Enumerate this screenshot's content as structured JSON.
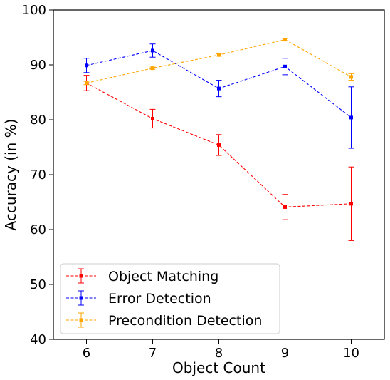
{
  "chart_data": {
    "type": "line",
    "xlabel": "Object Count",
    "ylabel": "Accuracy (in %)",
    "x": [
      6,
      7,
      8,
      9,
      10
    ],
    "xticks": [
      "6",
      "7",
      "8",
      "9",
      "10"
    ],
    "yticks": [
      "40",
      "50",
      "60",
      "70",
      "80",
      "90",
      "100"
    ],
    "xlim": [
      5.5,
      10.5
    ],
    "ylim": [
      40,
      100
    ],
    "grid": false,
    "legend_position": "lower-left",
    "series": [
      {
        "name": "Object Matching",
        "color": "#ff0000",
        "values": [
          86.7,
          80.2,
          75.4,
          64.1,
          64.7
        ],
        "err": [
          1.4,
          1.7,
          1.9,
          2.3,
          6.7
        ]
      },
      {
        "name": "Error Detection",
        "color": "#0000ff",
        "values": [
          89.9,
          92.6,
          85.7,
          89.7,
          80.4
        ],
        "err": [
          1.3,
          1.2,
          1.5,
          1.5,
          5.6
        ]
      },
      {
        "name": "Precondition Detection",
        "color": "#ffa500",
        "values": [
          86.7,
          89.4,
          91.8,
          94.6,
          87.8
        ],
        "err": [
          0.3,
          0.2,
          0.2,
          0.2,
          0.6
        ]
      }
    ]
  }
}
